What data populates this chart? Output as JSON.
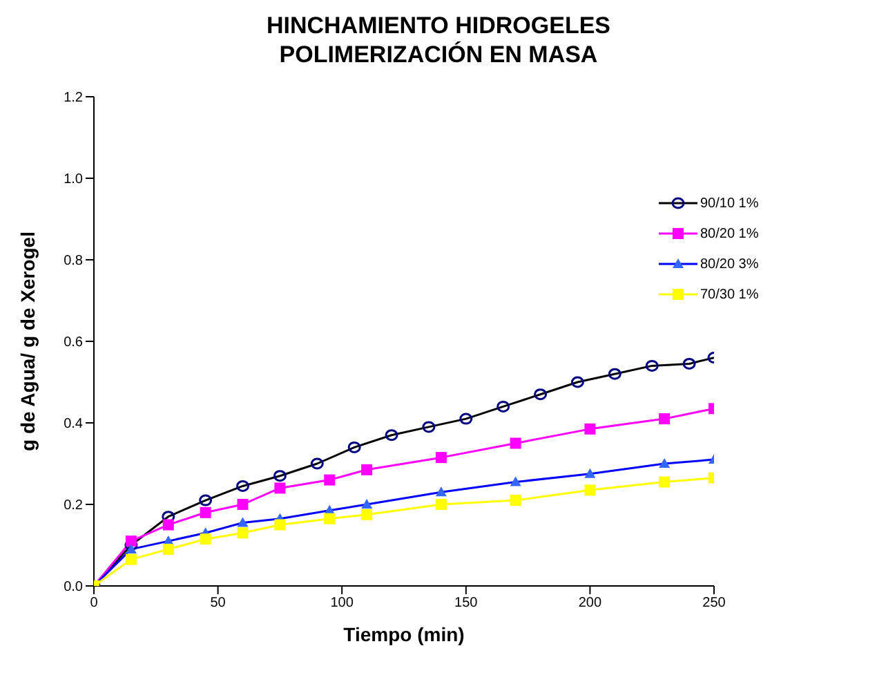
{
  "chart_data": {
    "type": "line",
    "title": "HINCHAMIENTO HIDROGELES\nPOLIMERIZACIÓN EN MASA",
    "xlabel": "Tiempo  (min)",
    "ylabel": "g de Agua/ g de Xerogel",
    "xlim": [
      0,
      250
    ],
    "xticks": [
      0,
      50,
      100,
      150,
      200,
      250
    ],
    "ylim": [
      0,
      1.2
    ],
    "yticks": [
      {
        "value": 0,
        "label": "0.0"
      },
      {
        "value": 0.2,
        "label": "0.2"
      },
      {
        "value": 0.4,
        "label": "0.4"
      },
      {
        "value": 0.6,
        "label": "0.6"
      },
      {
        "value": 0.8,
        "label": "0.8"
      },
      {
        "value": 1,
        "label": "1.0"
      },
      {
        "value": 1.2,
        "label": "1.2"
      }
    ],
    "grid": false,
    "legend": "right",
    "line_style": "solid",
    "series": [
      {
        "name": "90/10 1%",
        "color": "#000000",
        "marker": "circle",
        "x": [
          0,
          15,
          30,
          45,
          60,
          75,
          90,
          105,
          120,
          135,
          150,
          165,
          180,
          195,
          210,
          225,
          240,
          250
        ],
        "values": [
          0,
          0.1,
          0.17,
          0.21,
          0.245,
          0.27,
          0.3,
          0.34,
          0.37,
          0.39,
          0.41,
          0.44,
          0.47,
          0.5,
          0.52,
          0.54,
          0.545,
          0.56
        ]
      },
      {
        "name": "80/20 1%",
        "color": "#ff00ff",
        "marker": "square",
        "x": [
          0,
          15,
          30,
          45,
          60,
          75,
          95,
          110,
          140,
          170,
          200,
          230,
          250
        ],
        "values": [
          0,
          0.11,
          0.15,
          0.18,
          0.2,
          0.24,
          0.26,
          0.285,
          0.315,
          0.35,
          0.385,
          0.41,
          0.435
        ]
      },
      {
        "name": "80/20 3%",
        "color": "#0000ff",
        "marker": "triangle",
        "x": [
          0,
          15,
          30,
          45,
          60,
          75,
          95,
          110,
          140,
          170,
          200,
          230,
          250
        ],
        "values": [
          0,
          0.09,
          0.11,
          0.13,
          0.155,
          0.165,
          0.185,
          0.2,
          0.23,
          0.255,
          0.275,
          0.3,
          0.31
        ]
      },
      {
        "name": "70/30 1%",
        "color": "#ffff00",
        "marker": "square",
        "x": [
          0,
          15,
          30,
          45,
          60,
          75,
          95,
          110,
          140,
          170,
          200,
          230,
          250
        ],
        "values": [
          0,
          0.065,
          0.09,
          0.115,
          0.13,
          0.15,
          0.165,
          0.175,
          0.2,
          0.21,
          0.235,
          0.255,
          0.265
        ]
      }
    ]
  }
}
